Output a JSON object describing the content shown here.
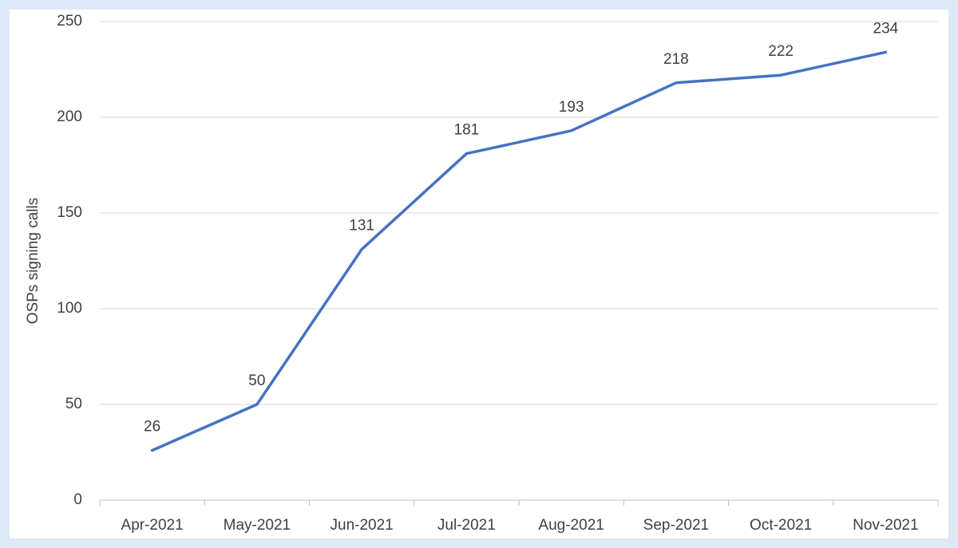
{
  "chart_data": {
    "type": "line",
    "y_label": "OSPs signing calls",
    "categories": [
      "Apr-2021",
      "May-2021",
      "Jun-2021",
      "Jul-2021",
      "Aug-2021",
      "Sep-2021",
      "Oct-2021",
      "Nov-2021"
    ],
    "series": [
      {
        "color": "#4472c4",
        "values": [
          26,
          50,
          131,
          181,
          193,
          218,
          222,
          234
        ]
      }
    ],
    "ylim": [
      0,
      250
    ],
    "yticks": [
      0,
      50,
      100,
      150,
      200,
      250
    ],
    "grid": true,
    "data_labels": true
  }
}
